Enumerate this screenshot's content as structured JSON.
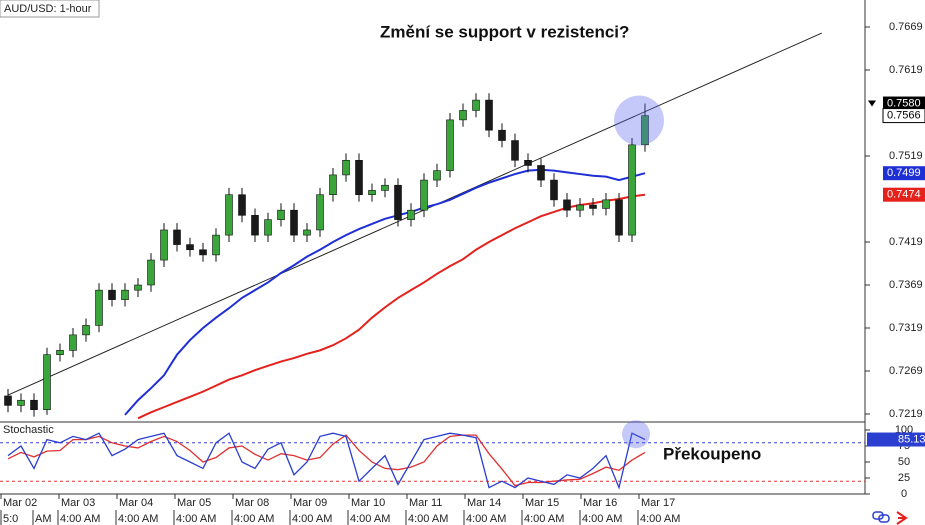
{
  "chart_data": [
    {
      "type": "candlestick",
      "title": "AUD/USD: 1-hour",
      "annotation": "Změní se support v rezistenci?",
      "open": [
        0.724,
        0.7229,
        0.7235,
        0.7224,
        0.7288,
        0.7293,
        0.7311,
        0.7322,
        0.7363,
        0.7352,
        0.7363,
        0.7369,
        0.7398,
        0.7433,
        0.7416,
        0.741,
        0.7404,
        0.7427,
        0.7474,
        0.745,
        0.7427,
        0.7445,
        0.7456,
        0.7427,
        0.7433,
        0.7474,
        0.7497,
        0.7514,
        0.7474,
        0.7479,
        0.7485,
        0.7445,
        0.7456,
        0.7491,
        0.7502,
        0.7561,
        0.7572,
        0.7584,
        0.7549,
        0.7537,
        0.7514,
        0.7508,
        0.7491,
        0.7468,
        0.7456,
        0.7462,
        0.7458,
        0.7468,
        0.7427,
        0.7532
      ],
      "high": [
        0.7248,
        0.7243,
        0.7243,
        0.7296,
        0.7301,
        0.7319,
        0.733,
        0.7371,
        0.7371,
        0.7371,
        0.7377,
        0.7406,
        0.7441,
        0.7441,
        0.7424,
        0.7418,
        0.7435,
        0.7482,
        0.7482,
        0.7458,
        0.7453,
        0.7464,
        0.7464,
        0.7441,
        0.7482,
        0.7505,
        0.7522,
        0.7522,
        0.7487,
        0.7493,
        0.7493,
        0.7464,
        0.7499,
        0.751,
        0.7569,
        0.758,
        0.7592,
        0.7592,
        0.7557,
        0.7545,
        0.7522,
        0.7516,
        0.7499,
        0.7476,
        0.747,
        0.747,
        0.7476,
        0.7476,
        0.754,
        0.758
      ],
      "low": [
        0.7221,
        0.7221,
        0.7216,
        0.7218,
        0.728,
        0.7285,
        0.7303,
        0.7314,
        0.7344,
        0.7344,
        0.7355,
        0.7361,
        0.739,
        0.7408,
        0.7402,
        0.7396,
        0.7396,
        0.7419,
        0.7442,
        0.7419,
        0.7419,
        0.7437,
        0.7419,
        0.7419,
        0.7425,
        0.7466,
        0.7489,
        0.7466,
        0.7466,
        0.7471,
        0.7437,
        0.7437,
        0.7448,
        0.7483,
        0.7494,
        0.7553,
        0.7564,
        0.7541,
        0.7529,
        0.7506,
        0.75,
        0.7483,
        0.746,
        0.7448,
        0.7448,
        0.745,
        0.745,
        0.7419,
        0.7419,
        0.7524
      ],
      "close": [
        0.7229,
        0.7235,
        0.7224,
        0.7288,
        0.7293,
        0.7311,
        0.7322,
        0.7363,
        0.7352,
        0.7363,
        0.7369,
        0.7398,
        0.7433,
        0.7416,
        0.741,
        0.7404,
        0.7427,
        0.7474,
        0.745,
        0.7427,
        0.7445,
        0.7456,
        0.7427,
        0.7433,
        0.7474,
        0.7497,
        0.7514,
        0.7474,
        0.7479,
        0.7485,
        0.7445,
        0.7456,
        0.7491,
        0.7502,
        0.7561,
        0.7572,
        0.7584,
        0.7549,
        0.7537,
        0.7514,
        0.7508,
        0.7491,
        0.7468,
        0.7456,
        0.7462,
        0.7458,
        0.7468,
        0.7427,
        0.7532,
        0.7566
      ],
      "up_color": "#3aa53a",
      "down_color": "#1a1a1a",
      "overlays": [
        {
          "color": "#1f2fd6",
          "values": [
            null,
            null,
            null,
            null,
            null,
            null,
            null,
            null,
            null,
            0.7218,
            0.7235,
            0.7249,
            0.7264,
            0.7288,
            0.7305,
            0.7319,
            0.7331,
            0.7342,
            0.7354,
            0.7363,
            0.7372,
            0.7383,
            0.7392,
            0.7402,
            0.741,
            0.7419,
            0.7427,
            0.7434,
            0.744,
            0.7446,
            0.745,
            0.7454,
            0.7459,
            0.7463,
            0.7468,
            0.7475,
            0.7482,
            0.7488,
            0.7493,
            0.7498,
            0.7502,
            0.7503,
            0.7502,
            0.75,
            0.7498,
            0.7496,
            0.7495,
            0.7491,
            0.7495,
            0.7499
          ]
        },
        {
          "color": "#e5211c",
          "values": [
            null,
            null,
            null,
            null,
            null,
            null,
            null,
            null,
            null,
            null,
            0.7214,
            0.7221,
            0.7227,
            0.7233,
            0.7239,
            0.7245,
            0.7252,
            0.7259,
            0.7264,
            0.727,
            0.7275,
            0.728,
            0.7284,
            0.7289,
            0.7293,
            0.7299,
            0.7307,
            0.7317,
            0.7331,
            0.7343,
            0.7354,
            0.7363,
            0.7372,
            0.7382,
            0.7391,
            0.7399,
            0.741,
            0.7419,
            0.7427,
            0.7435,
            0.7442,
            0.7449,
            0.7454,
            0.7459,
            0.7462,
            0.7464,
            0.7467,
            0.7469,
            0.7472,
            0.7474
          ]
        }
      ],
      "trendline": {
        "x": [
          0,
          62.6
        ],
        "values": [
          0.7241,
          0.7662
        ],
        "color": "#222222"
      },
      "ylim": [
        0.72097,
        0.77004
      ],
      "yticks": [
        0.7669,
        0.7619,
        0.7519,
        0.7419,
        0.7369,
        0.7319,
        0.7269,
        0.7219
      ],
      "price_labels": [
        {
          "value": 0.758,
          "label": "0.7580",
          "color": "#000000"
        },
        {
          "value": 0.7566,
          "label": "0.7566",
          "color": "#ffffff"
        },
        {
          "value": 0.7499,
          "label": "0.7499",
          "color": "#1f2fd6"
        },
        {
          "value": 0.7474,
          "label": "0.7474",
          "color": "#e5211c"
        }
      ]
    },
    {
      "type": "line",
      "title": "Stochastic",
      "annotation": "Překoupeno",
      "series": [
        {
          "color": "#2a3fd0",
          "values": [
            60,
            75,
            40,
            85,
            80,
            90,
            85,
            95,
            60,
            70,
            85,
            90,
            95,
            60,
            50,
            40,
            80,
            95,
            50,
            40,
            70,
            80,
            30,
            50,
            90,
            95,
            90,
            20,
            40,
            60,
            15,
            50,
            85,
            90,
            95,
            92,
            88,
            10,
            20,
            10,
            25,
            20,
            15,
            30,
            25,
            40,
            60,
            10,
            95,
            85.13
          ]
        },
        {
          "color": "#e03030",
          "values": [
            55,
            65,
            58,
            67,
            68,
            85,
            85,
            90,
            80,
            75,
            72,
            82,
            90,
            82,
            68,
            50,
            57,
            72,
            75,
            62,
            53,
            63,
            60,
            53,
            57,
            78,
            92,
            68,
            50,
            40,
            38,
            42,
            50,
            75,
            90,
            92,
            92,
            63,
            39,
            13,
            18,
            18,
            20,
            22,
            23,
            32,
            42,
            37,
            53,
            65
          ]
        }
      ],
      "levels": [
        80,
        20
      ],
      "level_color": "#3a3fd0",
      "ylim": [
        0,
        112.5
      ],
      "yticks": [
        100,
        75,
        50,
        25,
        0
      ],
      "day_labels": [
        "Mar 02",
        "Mar 03",
        "Mar 04",
        "Mar 05",
        "Mar 08",
        "Mar 09",
        "Mar 10",
        "Mar 11",
        "Mar 14",
        "Mar 15",
        "Mar 16",
        "Mar 17"
      ],
      "time_labels": [
        "5:0",
        "AM",
        "4:00 AM",
        "4:00 AM",
        "4:00 AM",
        "4:00 AM",
        "4:00 AM",
        "4:00 AM",
        "4:00 AM",
        "4:00 AM",
        "4:00 AM",
        "4:00 AM",
        "4:00 AM"
      ]
    }
  ]
}
